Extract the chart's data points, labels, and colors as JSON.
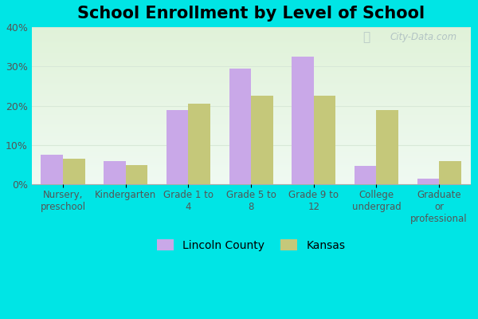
{
  "title": "School Enrollment by Level of School",
  "categories": [
    "Nursery,\npreschool",
    "Kindergarten",
    "Grade 1 to\n4",
    "Grade 5 to\n8",
    "Grade 9 to\n12",
    "College\nundergrad",
    "Graduate\nor\nprofessional"
  ],
  "lincoln_county": [
    7.5,
    6.0,
    19.0,
    29.5,
    32.5,
    4.8,
    1.5
  ],
  "kansas": [
    6.5,
    5.0,
    20.5,
    22.5,
    22.5,
    19.0,
    6.0
  ],
  "lincoln_color": "#c9a8e8",
  "kansas_color": "#c5c87a",
  "bar_width": 0.35,
  "ylim": [
    0,
    40
  ],
  "yticks": [
    0,
    10,
    20,
    30,
    40
  ],
  "title_fontsize": 15,
  "tick_fontsize": 8.5,
  "legend_fontsize": 10,
  "outer_bg": "#00e5e5",
  "plot_bg_top": "#e8f5ee",
  "plot_bg_bottom": "#f0f8e8",
  "grid_color": "#d8e8d8",
  "watermark_text": "City-Data.com",
  "legend_lincoln": "Lincoln County",
  "legend_kansas": "Kansas"
}
